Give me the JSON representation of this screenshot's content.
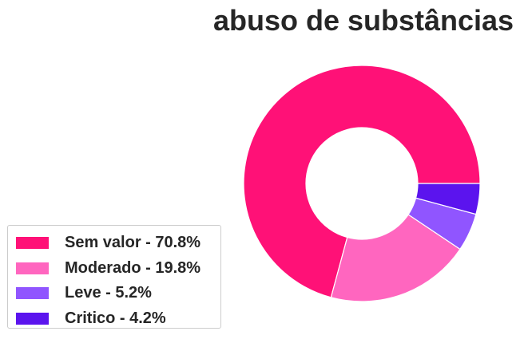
{
  "chart_data": {
    "type": "pie",
    "variant": "donut",
    "title": "abuso de substâncias",
    "legend_placement": "lower-left",
    "slices": [
      {
        "label": "Sem valor",
        "value": 70.8,
        "legend_text": "Sem valor - 70.8%",
        "color": "#ff1177"
      },
      {
        "label": "Moderado",
        "value": 19.8,
        "legend_text": "Moderado - 19.8%",
        "color": "#ff66bf"
      },
      {
        "label": "Leve",
        "value": 5.2,
        "legend_text": "Leve - 5.2%",
        "color": "#9055ff"
      },
      {
        "label": "Critico",
        "value": 4.2,
        "legend_text": "Critico - 4.2%",
        "color": "#5b14ee"
      }
    ]
  }
}
